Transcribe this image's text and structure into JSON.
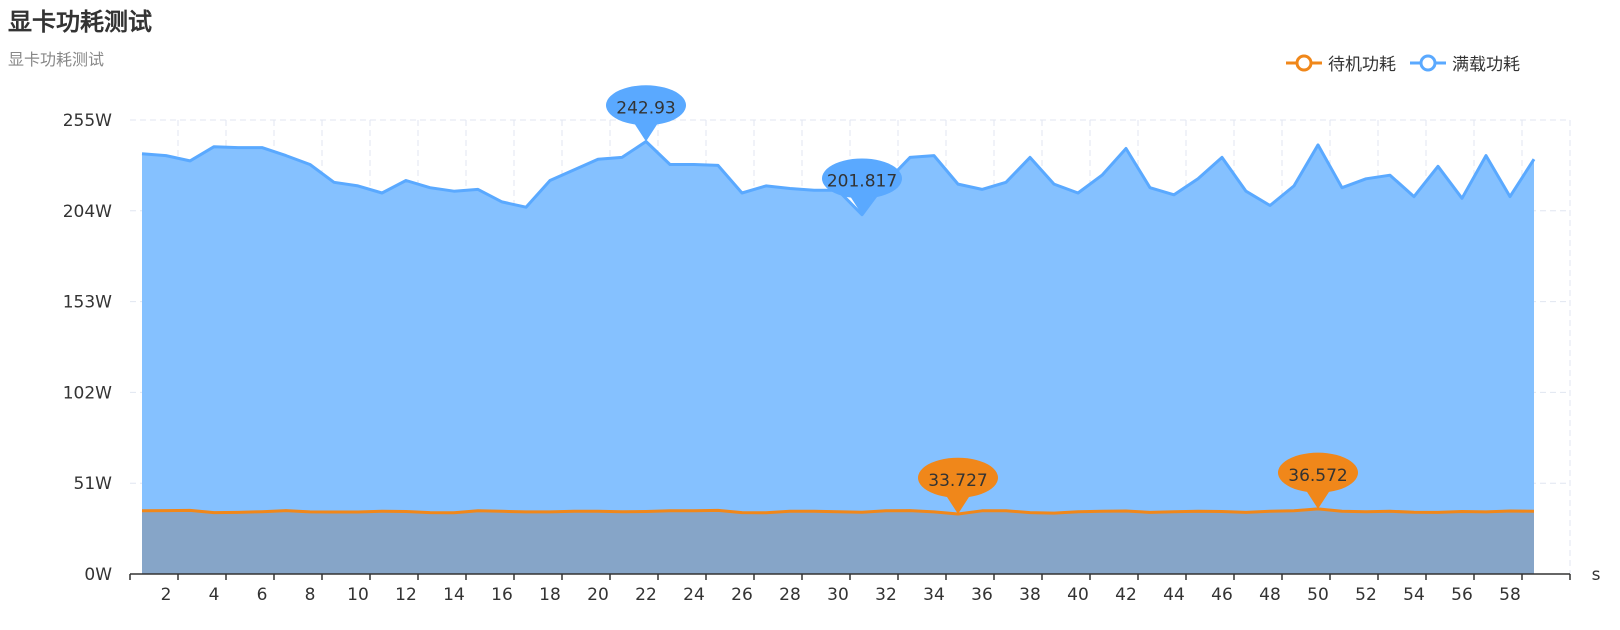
{
  "chart_data": {
    "type": "area",
    "title": "显卡功耗测试",
    "subtitle": "显卡功耗测试",
    "legend_position": "top-right",
    "x_unit": "s",
    "y_ticks": [
      "0W",
      "51W",
      "102W",
      "153W",
      "204W",
      "255W"
    ],
    "ylim": [
      0,
      255
    ],
    "grid": true,
    "x": [
      1,
      2,
      3,
      4,
      5,
      6,
      7,
      8,
      9,
      10,
      11,
      12,
      13,
      14,
      15,
      16,
      17,
      18,
      19,
      20,
      21,
      22,
      23,
      24,
      25,
      26,
      27,
      28,
      29,
      30,
      31,
      32,
      33,
      34,
      35,
      36,
      37,
      38,
      39,
      40,
      41,
      42,
      43,
      44,
      45,
      46,
      47,
      48,
      49,
      50,
      51,
      52,
      53,
      54,
      55,
      56,
      57,
      58,
      59
    ],
    "x_tick_labels": [
      "2",
      "4",
      "6",
      "8",
      "10",
      "12",
      "14",
      "16",
      "18",
      "20",
      "22",
      "24",
      "26",
      "28",
      "30",
      "32",
      "34",
      "36",
      "38",
      "40",
      "42",
      "44",
      "46",
      "48",
      "50",
      "52",
      "54",
      "56",
      "58"
    ],
    "series": [
      {
        "name": "满载功耗",
        "color": "#5aa9ff",
        "fill": "#85c1ff",
        "values": [
          236,
          235,
          232,
          240,
          239.5,
          239.5,
          235,
          230,
          220,
          218,
          214,
          221,
          217,
          215,
          216,
          209,
          206,
          221,
          227,
          233,
          234,
          242.93,
          230,
          230,
          229.5,
          214,
          218,
          216.5,
          215.5,
          215.5,
          201.817,
          220,
          234,
          235,
          219,
          216,
          220,
          234,
          219,
          214,
          224,
          239,
          217,
          213,
          222,
          234,
          215,
          207,
          218,
          241,
          217,
          222,
          224,
          212,
          229,
          211,
          235,
          212,
          233
        ],
        "markers": [
          {
            "label": "242.93",
            "x": 22,
            "value": 242.93
          },
          {
            "label": "201.817",
            "x": 31,
            "value": 201.817
          }
        ]
      },
      {
        "name": "待机功耗",
        "color": "#f0871a",
        "fill": "#86a5c8",
        "values": [
          35.5,
          35.6,
          35.7,
          34.5,
          34.6,
          35,
          35.6,
          34.9,
          34.8,
          34.8,
          35.3,
          35.1,
          34.5,
          34.4,
          35.5,
          35.2,
          34.9,
          34.9,
          35.3,
          35.3,
          35,
          35.1,
          35.5,
          35.5,
          35.7,
          34.5,
          34.4,
          35.3,
          35.2,
          35,
          34.7,
          35.5,
          35.6,
          34.9,
          33.727,
          35.5,
          35.5,
          34.5,
          34.2,
          35,
          35.2,
          35.4,
          34.6,
          35,
          35.2,
          35.1,
          34.6,
          35.2,
          35.5,
          36.572,
          35.2,
          35,
          35.2,
          34.7,
          34.6,
          35.1,
          34.9,
          35.4,
          35.2
        ],
        "markers": [
          {
            "label": "33.727",
            "x": 35,
            "value": 33.727
          },
          {
            "label": "36.572",
            "x": 50,
            "value": 36.572
          }
        ]
      }
    ]
  }
}
